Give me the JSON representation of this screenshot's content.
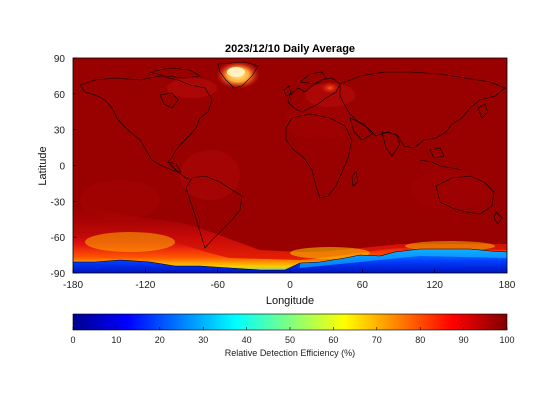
{
  "chart_data": {
    "type": "heatmap",
    "title": "2023/12/10 Daily Average",
    "xlabel": "Longitude",
    "ylabel": "Latitude",
    "xlim": [
      -180,
      180
    ],
    "ylim": [
      -90,
      90
    ],
    "xticks": [
      -180,
      -120,
      -60,
      0,
      60,
      120,
      180
    ],
    "yticks": [
      90,
      60,
      30,
      0,
      -30,
      -60,
      -90
    ],
    "colorbar": {
      "label": "Relative Detection Efficiency (%)",
      "range": [
        0,
        100
      ],
      "ticks": [
        0,
        10,
        20,
        30,
        40,
        50,
        60,
        70,
        80,
        90,
        100
      ],
      "colormap": "jet",
      "orientation": "horizontal",
      "position": "bottom"
    },
    "dominant_value": 97,
    "features": [
      {
        "region": "Greenland",
        "value_range": [
          80,
          90
        ]
      },
      {
        "region": "Southern Ocean near Antarctica",
        "value_range": [
          60,
          92
        ]
      },
      {
        "region": "Antarctica coast (-75 to -90)",
        "value_range": [
          10,
          40
        ]
      }
    ]
  },
  "colors": {
    "background": "#7f0000",
    "plot_bg": "#990000",
    "frame": "#000000"
  }
}
